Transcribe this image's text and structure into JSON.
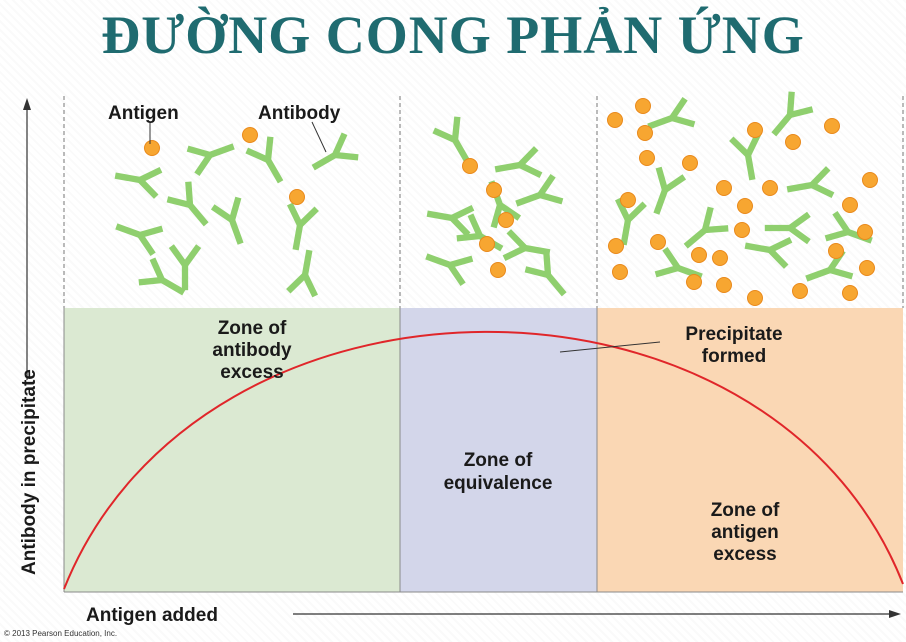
{
  "title": "ĐƯỜNG CONG PHẢN ỨNG",
  "y_axis_label": "Antibody in precipitate",
  "x_axis_label": "Antigen added",
  "labels": {
    "antigen": "Antigen",
    "antibody": "Antibody",
    "precipitate": [
      "Precipitate",
      "formed"
    ]
  },
  "zones": [
    {
      "id": "antibody-excess",
      "lines": [
        "Zone of",
        "antibody",
        "excess"
      ],
      "color": "#dbe9d2"
    },
    {
      "id": "equivalence",
      "lines": [
        "Zone of",
        "equivalence"
      ],
      "color": "#d3d6ea"
    },
    {
      "id": "antigen-excess",
      "lines": [
        "Zone of",
        "antigen",
        "excess"
      ],
      "color": "#fad7b4"
    }
  ],
  "copyright": "© 2013 Pearson Education, Inc.",
  "colors": {
    "title": "#1f6b70",
    "curve": "#e0262a",
    "antibody": "#8fcf6e",
    "antigen": "#f7a631",
    "antigen_outline": "#e9891b"
  }
}
